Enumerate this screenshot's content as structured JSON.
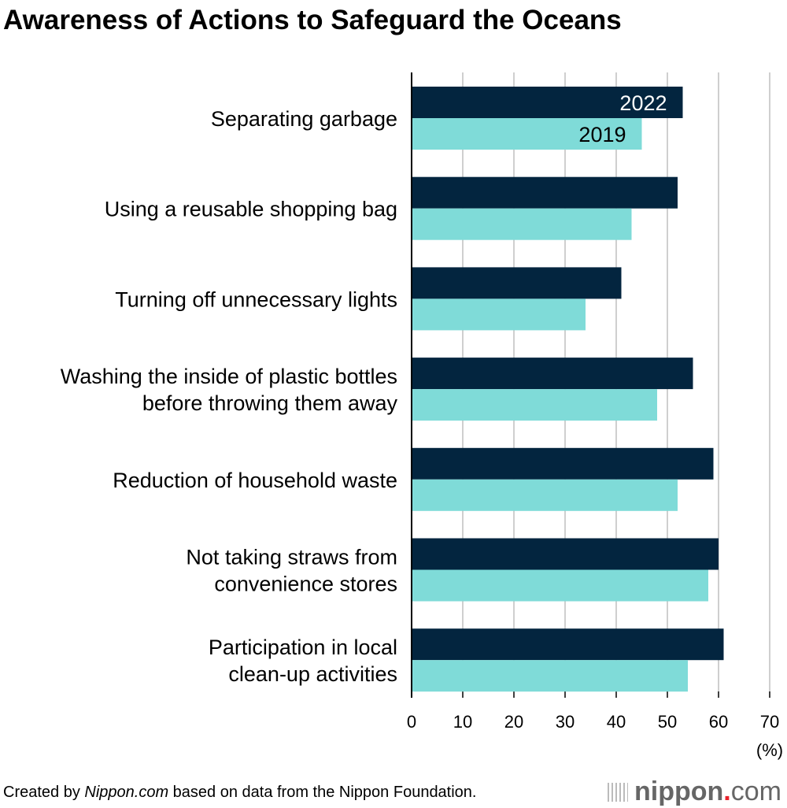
{
  "title": "Awareness of Actions to Safeguard the Oceans",
  "chart_data": {
    "type": "bar",
    "orientation": "horizontal",
    "title": "Awareness of Actions to Safeguard the Oceans",
    "categories": [
      [
        "Separating garbage"
      ],
      [
        "Using a reusable shopping bag"
      ],
      [
        "Turning off unnecessary lights"
      ],
      [
        "Washing the inside of plastic bottles",
        "before throwing them away"
      ],
      [
        "Reduction of household waste"
      ],
      [
        "Not taking straws from",
        "convenience stores"
      ],
      [
        "Participation in local",
        "clean-up activities"
      ]
    ],
    "series": [
      {
        "name": "2022",
        "color": "#03253f",
        "values": [
          53,
          52,
          41,
          55,
          59,
          60,
          61
        ]
      },
      {
        "name": "2019",
        "color": "#7fdbd8",
        "values": [
          45,
          43,
          34,
          48,
          52,
          58,
          54
        ]
      }
    ],
    "xlim": [
      0,
      70
    ],
    "xticks": [
      "0",
      "10",
      "20",
      "30",
      "40",
      "50",
      "60",
      "70"
    ],
    "xlabel": "(%)",
    "grid": true,
    "legend": "inline-on-first-bars"
  },
  "footer": {
    "prefix": "Created by ",
    "source_italic": "Nippon.com",
    "suffix": " based on data from the Nippon Foundation."
  },
  "logo": {
    "name": "nippon",
    "dot": ".",
    "tld": "com"
  }
}
